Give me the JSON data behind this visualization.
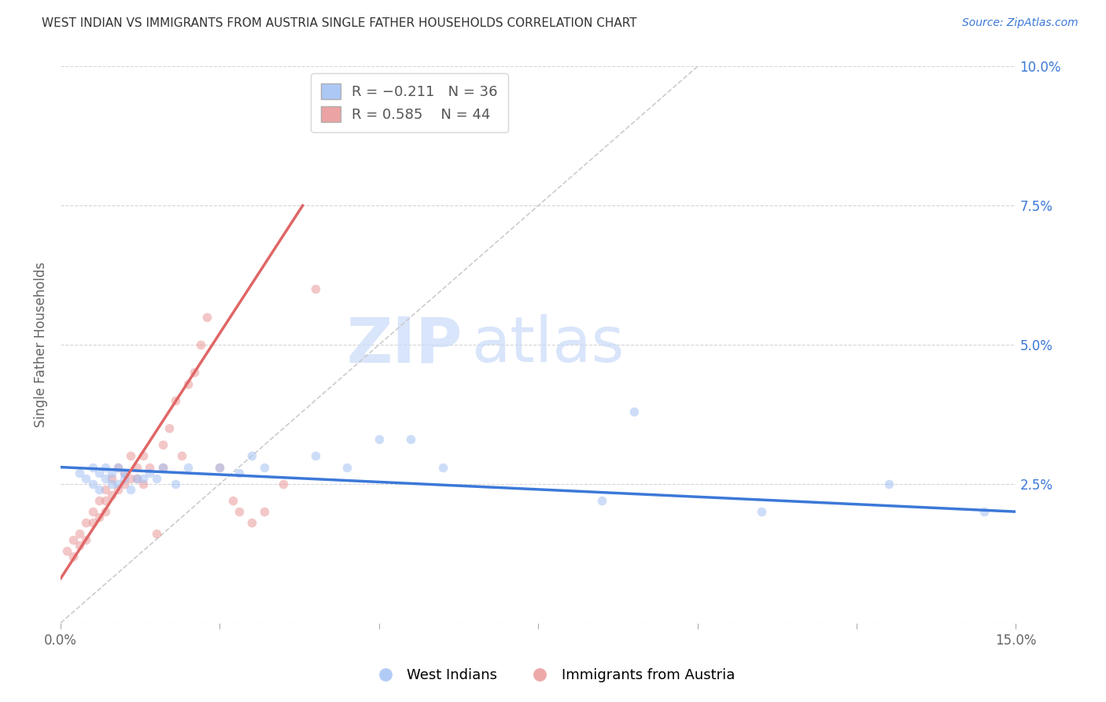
{
  "title": "WEST INDIAN VS IMMIGRANTS FROM AUSTRIA SINGLE FATHER HOUSEHOLDS CORRELATION CHART",
  "source": "Source: ZipAtlas.com",
  "ylabel": "Single Father Households",
  "x_min": 0.0,
  "x_max": 0.15,
  "y_min": 0.0,
  "y_max": 0.1,
  "y_ticks": [
    0.0,
    0.025,
    0.05,
    0.075,
    0.1
  ],
  "x_ticks": [
    0.0,
    0.025,
    0.05,
    0.075,
    0.1,
    0.125,
    0.15
  ],
  "blue_color": "#a4c2f4",
  "pink_color": "#ea9999",
  "blue_line_color": "#3c78d8",
  "pink_line_color": "#e06666",
  "diagonal_color": "#cccccc",
  "legend_label_blue": "West Indians",
  "legend_label_pink": "Immigrants from Austria",
  "blue_scatter_x": [
    0.003,
    0.004,
    0.005,
    0.005,
    0.006,
    0.006,
    0.007,
    0.007,
    0.008,
    0.008,
    0.009,
    0.009,
    0.01,
    0.01,
    0.011,
    0.012,
    0.013,
    0.014,
    0.015,
    0.016,
    0.018,
    0.02,
    0.025,
    0.028,
    0.03,
    0.032,
    0.04,
    0.045,
    0.05,
    0.055,
    0.06,
    0.085,
    0.09,
    0.11,
    0.13,
    0.145
  ],
  "blue_scatter_y": [
    0.027,
    0.026,
    0.025,
    0.028,
    0.024,
    0.027,
    0.026,
    0.028,
    0.025,
    0.027,
    0.025,
    0.028,
    0.026,
    0.027,
    0.024,
    0.026,
    0.026,
    0.027,
    0.026,
    0.028,
    0.025,
    0.028,
    0.028,
    0.027,
    0.03,
    0.028,
    0.03,
    0.028,
    0.033,
    0.033,
    0.028,
    0.022,
    0.038,
    0.02,
    0.025,
    0.02
  ],
  "blue_line_x": [
    0.0,
    0.15
  ],
  "blue_line_y": [
    0.028,
    0.02
  ],
  "pink_scatter_x": [
    0.001,
    0.002,
    0.002,
    0.003,
    0.003,
    0.004,
    0.004,
    0.005,
    0.005,
    0.006,
    0.006,
    0.007,
    0.007,
    0.007,
    0.008,
    0.008,
    0.009,
    0.009,
    0.01,
    0.01,
    0.011,
    0.011,
    0.012,
    0.012,
    0.013,
    0.013,
    0.014,
    0.015,
    0.016,
    0.016,
    0.017,
    0.018,
    0.019,
    0.02,
    0.021,
    0.022,
    0.023,
    0.025,
    0.027,
    0.028,
    0.03,
    0.032,
    0.035,
    0.04
  ],
  "pink_scatter_y": [
    0.013,
    0.015,
    0.012,
    0.014,
    0.016,
    0.015,
    0.018,
    0.018,
    0.02,
    0.019,
    0.022,
    0.02,
    0.022,
    0.024,
    0.023,
    0.026,
    0.024,
    0.028,
    0.025,
    0.027,
    0.026,
    0.03,
    0.026,
    0.028,
    0.025,
    0.03,
    0.028,
    0.016,
    0.028,
    0.032,
    0.035,
    0.04,
    0.03,
    0.043,
    0.045,
    0.05,
    0.055,
    0.028,
    0.022,
    0.02,
    0.018,
    0.02,
    0.025,
    0.06
  ],
  "pink_line_x": [
    0.0,
    0.038
  ],
  "pink_line_y": [
    0.008,
    0.075
  ],
  "background_color": "#ffffff",
  "grid_color": "#cccccc",
  "text_color_blue": "#3c78d8",
  "text_color_gray": "#666666",
  "marker_size": 70,
  "marker_alpha": 0.55,
  "title_fontsize": 11,
  "source_fontsize": 10,
  "axis_label_fontsize": 12,
  "tick_fontsize": 12,
  "legend_fontsize": 13
}
